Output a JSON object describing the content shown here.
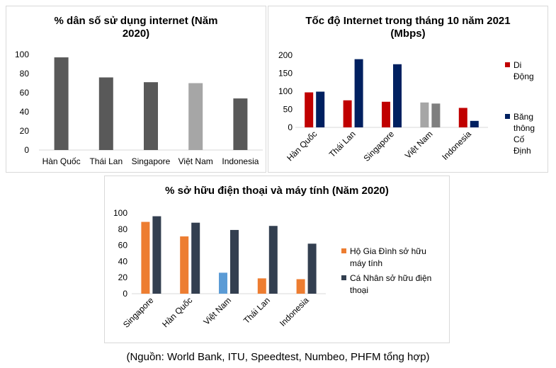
{
  "chart_data": [
    {
      "type": "bar",
      "title_line1": "% dân số sử dụng internet (Năm",
      "title_line2": "2020)",
      "categories": [
        "Hàn Quốc",
        "Thái Lan",
        "Singapore",
        "Việt Nam",
        "Indonesia"
      ],
      "values": [
        97,
        76,
        71,
        70,
        54
      ],
      "colors": [
        "#595959",
        "#595959",
        "#595959",
        "#a6a6a6",
        "#595959"
      ],
      "yticks": [
        "0",
        "20",
        "40",
        "60",
        "80",
        "100"
      ],
      "ylim": [
        0,
        100
      ],
      "grid": false
    },
    {
      "type": "bar",
      "title_line1": "Tốc độ Internet trong tháng 10 năm 2021",
      "title_line2": "(Mbps)",
      "categories": [
        "Hàn Quốc",
        "Thái Lan",
        "Singapore",
        "Việt Nam",
        "Indonesia"
      ],
      "series": [
        {
          "name": "Di Động",
          "legend_lines": [
            "Di",
            "Động"
          ],
          "color": "#c00000",
          "values": [
            97,
            75,
            71,
            69,
            54
          ]
        },
        {
          "name": "Băng thông Cố Định",
          "legend_lines": [
            "Băng",
            "thông",
            "Cố",
            "Định"
          ],
          "color": "#002060",
          "values": [
            99,
            189,
            175,
            66,
            18
          ]
        }
      ],
      "highlight": {
        "category": "Việt Nam",
        "colors": [
          "#a6a6a6",
          "#7f7f7f"
        ]
      },
      "yticks": [
        "0",
        "50",
        "100",
        "150",
        "200"
      ],
      "ylim": [
        0,
        200
      ],
      "legend_position": "right",
      "grid": false
    },
    {
      "type": "bar",
      "title_line1": "% sở hữu điện thoại và máy tính (Năm 2020)",
      "categories": [
        "Singapore",
        "Hàn Quốc",
        "Việt Nam",
        "Thái Lan",
        "Indonesia"
      ],
      "series": [
        {
          "name": "Hộ Gia Đình sở hữu máy tính",
          "legend_lines": [
            "Hộ Gia Đình sở hữu",
            "máy tính"
          ],
          "color": "#ed7d31",
          "values": [
            89,
            71,
            26,
            19,
            18
          ]
        },
        {
          "name": "Cá Nhân sở hữu điện thoại",
          "legend_lines": [
            "Cá Nhân sở hữu điện",
            "thoại"
          ],
          "color": "#333f50",
          "values": [
            96,
            88,
            79,
            84,
            62
          ]
        }
      ],
      "highlight": {
        "category": "Việt Nam",
        "colors": [
          "#5b9bd5",
          "#333f50"
        ]
      },
      "yticks": [
        "0",
        "20",
        "40",
        "60",
        "80",
        "100"
      ],
      "ylim": [
        0,
        100
      ],
      "legend_position": "right",
      "grid": false
    }
  ],
  "source_note": "(Nguồn: World Bank, ITU, Speedtest, Numbeo, PHFM tổng hợp)"
}
